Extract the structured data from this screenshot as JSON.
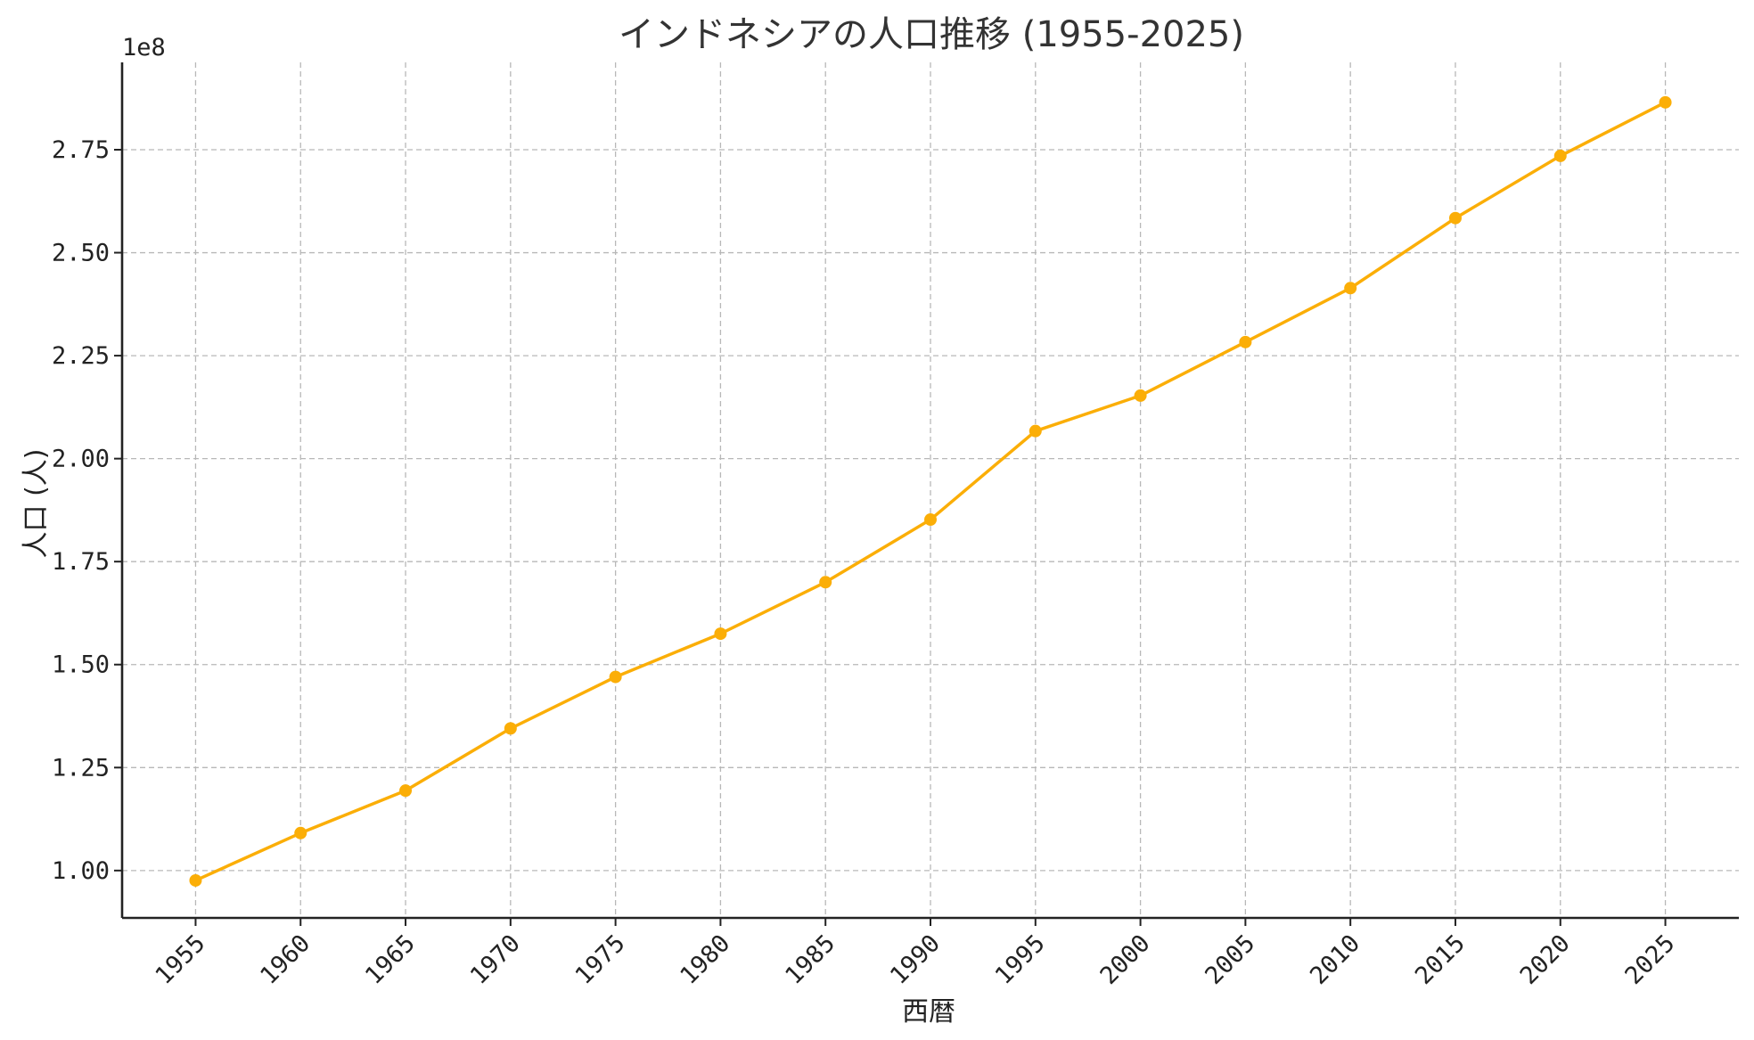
{
  "chart_data": {
    "type": "line",
    "title": "インドネシアの人口推移 (1955-2025)",
    "xlabel": "西暦",
    "ylabel": "人口 (人)",
    "y_offset_label": "1e8",
    "x": [
      1955,
      1960,
      1965,
      1970,
      1975,
      1980,
      1985,
      1990,
      1995,
      2000,
      2005,
      2010,
      2015,
      2020,
      2025
    ],
    "x_tick_labels": [
      "1955",
      "1960",
      "1965",
      "1970",
      "1975",
      "1980",
      "1985",
      "1990",
      "1995",
      "2000",
      "2005",
      "2010",
      "2015",
      "2020",
      "2025"
    ],
    "series": [
      {
        "values": [
          97600000,
          109100000,
          119400000,
          134500000,
          147000000,
          157500000,
          170000000,
          185200000,
          206700000,
          215300000,
          228300000,
          241400000,
          258400000,
          273500000,
          286500000
        ],
        "color": "#fbae07",
        "marker": "circle"
      }
    ],
    "y_ticks": [
      100000000,
      125000000,
      150000000,
      175000000,
      200000000,
      225000000,
      250000000,
      275000000
    ],
    "y_tick_labels": [
      "1.00",
      "1.25",
      "1.50",
      "1.75",
      "2.00",
      "2.25",
      "2.50",
      "2.75"
    ],
    "xlim": [
      1951.5,
      2028.5
    ],
    "ylim": [
      88500000,
      296200000
    ],
    "grid": true,
    "grid_style": "dashed",
    "legend": "none"
  }
}
